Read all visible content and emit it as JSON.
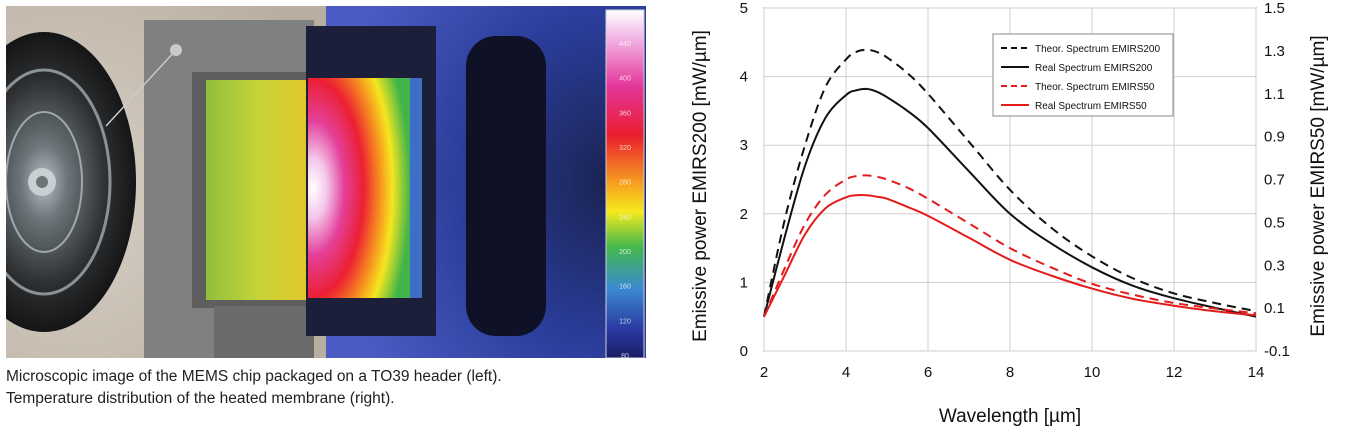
{
  "caption": {
    "line1": "Microscopic image of the MEMS chip packaged on a TO39 header (left).",
    "line2": "Temperature distribution of the heated membrane (right)."
  },
  "colorbar": {
    "tick_labels": [
      "440",
      "400",
      "360",
      "320",
      "280",
      "240",
      "200",
      "160",
      "120",
      "80"
    ]
  },
  "chart_data": {
    "type": "line",
    "title": "",
    "xlabel": "Wavelength [µm]",
    "ylabel": "Emissive power EMIRS200 [mW/µm]",
    "y2label": "Emissive power EMIRS50 [mW/µm]",
    "xlim": [
      2,
      14
    ],
    "ylim": [
      0,
      5
    ],
    "y2lim": [
      -0.1,
      1.5
    ],
    "xticks": [
      2,
      4,
      6,
      8,
      10,
      12,
      14
    ],
    "yticks": [
      0,
      1,
      2,
      3,
      4,
      5
    ],
    "y2ticks": [
      "-0.1",
      "0.1",
      "0.3",
      "0.5",
      "0.7",
      "0.9",
      "1.1",
      "1.3",
      "1.5"
    ],
    "grid": true,
    "legend_position": "top-right",
    "series": [
      {
        "name": "Theor. Spectrum EMIRS200",
        "color": "#111111",
        "dash": "dashed",
        "axis": "left",
        "x": [
          2,
          2.5,
          3,
          3.5,
          4,
          4.25,
          4.5,
          4.75,
          5,
          5.5,
          6,
          7,
          8,
          9,
          10,
          11,
          12,
          13,
          14
        ],
        "y": [
          0.5,
          1.9,
          3.0,
          3.85,
          4.25,
          4.36,
          4.39,
          4.36,
          4.28,
          4.05,
          3.75,
          3.05,
          2.35,
          1.8,
          1.38,
          1.06,
          0.84,
          0.7,
          0.58
        ]
      },
      {
        "name": "Real Spectrum EMIRS200",
        "color": "#111111",
        "dash": "solid",
        "axis": "left",
        "x": [
          2,
          2.5,
          3,
          3.5,
          4,
          4.25,
          4.5,
          4.75,
          5,
          5.5,
          6,
          7,
          8,
          9,
          10,
          11,
          12,
          13,
          14
        ],
        "y": [
          0.5,
          1.65,
          2.7,
          3.4,
          3.73,
          3.8,
          3.82,
          3.78,
          3.7,
          3.5,
          3.25,
          2.62,
          2.0,
          1.57,
          1.22,
          0.95,
          0.77,
          0.63,
          0.5
        ]
      },
      {
        "name": "Theor. Spectrum EMIRS50",
        "color": "#e41b1b",
        "dash": "dashed",
        "axis": "left",
        "x": [
          2,
          2.5,
          3,
          3.5,
          4,
          4.25,
          4.5,
          4.75,
          5,
          5.5,
          6,
          7,
          8,
          9,
          10,
          11,
          12,
          13,
          14
        ],
        "y": [
          0.5,
          1.2,
          1.85,
          2.28,
          2.5,
          2.55,
          2.56,
          2.54,
          2.5,
          2.38,
          2.22,
          1.86,
          1.5,
          1.22,
          0.98,
          0.82,
          0.7,
          0.62,
          0.55
        ]
      },
      {
        "name": "Real Spectrum EMIRS50",
        "color": "#e41b1b",
        "dash": "solid",
        "axis": "left",
        "x": [
          2,
          2.5,
          3,
          3.5,
          4,
          4.25,
          4.5,
          4.75,
          5,
          5.5,
          6,
          7,
          8,
          9,
          10,
          11,
          12,
          13,
          14
        ],
        "y": [
          0.5,
          1.1,
          1.7,
          2.08,
          2.24,
          2.27,
          2.27,
          2.25,
          2.22,
          2.1,
          1.97,
          1.65,
          1.33,
          1.1,
          0.91,
          0.76,
          0.66,
          0.58,
          0.52
        ]
      }
    ]
  }
}
